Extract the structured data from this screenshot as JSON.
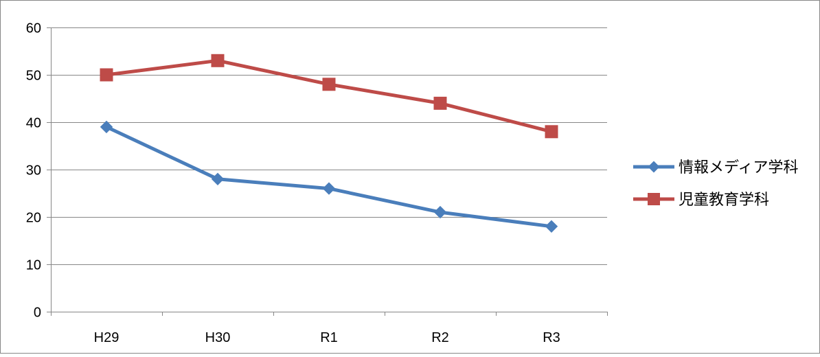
{
  "chart_data": {
    "type": "line",
    "title": "",
    "xlabel": "",
    "ylabel": "",
    "categories": [
      "H29",
      "H30",
      "R1",
      "R2",
      "R3"
    ],
    "ylim": [
      0,
      60
    ],
    "yticks": [
      0,
      10,
      20,
      30,
      40,
      50,
      60
    ],
    "grid": true,
    "legend_position": "right",
    "series": [
      {
        "name": "情報メディア学科",
        "values": [
          39,
          28,
          26,
          21,
          18
        ],
        "color": "#4a7ebb",
        "marker": "diamond"
      },
      {
        "name": "児童教育学科",
        "values": [
          50,
          53,
          48,
          44,
          38
        ],
        "color": "#be4b48",
        "marker": "square"
      }
    ]
  },
  "colors": {
    "gridline": "#868686",
    "axis": "#868686",
    "frame": "#868686",
    "background": "#ffffff"
  }
}
